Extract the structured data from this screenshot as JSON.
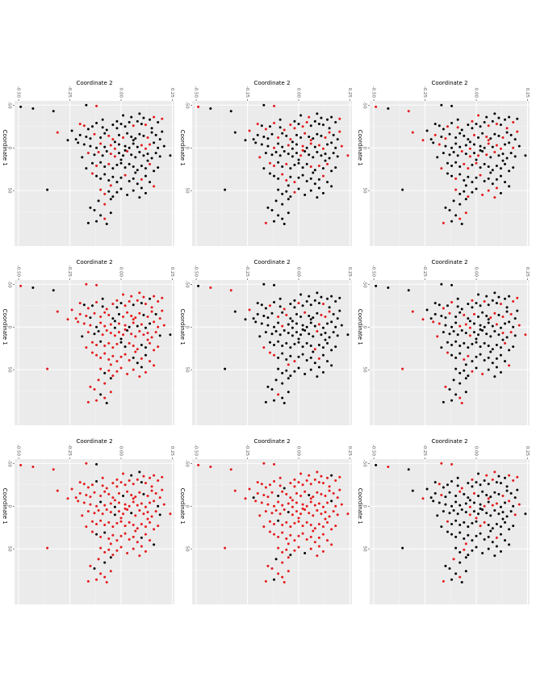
{
  "chart_data": {
    "type": "scatter",
    "layout": "3x3 grid of small-multiple scatter plots (rotated axes)",
    "shared_axes": {
      "top_title": "Coordinate 2",
      "side_title": "Coordinate 1",
      "top_ticks": [
        {
          "value": -0.5,
          "label": "-0.50"
        },
        {
          "value": -0.25,
          "label": "-0.25"
        },
        {
          "value": 0.0,
          "label": "0.00"
        },
        {
          "value": 0.25,
          "label": "0.25"
        }
      ],
      "side_ticks": [
        {
          "value": -50,
          "label": "-50"
        },
        {
          "value": 0,
          "label": "0"
        },
        {
          "value": 50,
          "label": "50"
        }
      ],
      "top_range": [
        -0.52,
        0.26
      ],
      "side_range": [
        -55,
        115
      ]
    },
    "colors": {
      "base": "#000000",
      "highlight": "#e41a1c"
    },
    "panels": [
      {
        "id": 1,
        "highlight_fraction": 0.22,
        "seed": 11
      },
      {
        "id": 2,
        "highlight_fraction": 0.26,
        "seed": 23
      },
      {
        "id": 3,
        "highlight_fraction": 0.28,
        "seed": 37
      },
      {
        "id": 4,
        "highlight_fraction": 0.74,
        "seed": 41
      },
      {
        "id": 5,
        "highlight_fraction": 0.14,
        "seed": 53
      },
      {
        "id": 6,
        "highlight_fraction": 0.2,
        "seed": 67
      },
      {
        "id": 7,
        "highlight_fraction": 0.82,
        "seed": 71
      },
      {
        "id": 8,
        "highlight_fraction": 0.9,
        "seed": 83
      },
      {
        "id": 9,
        "highlight_fraction": 0.16,
        "seed": 97
      }
    ],
    "points": [
      [
        -0.49,
        -48
      ],
      [
        -0.43,
        -46
      ],
      [
        -0.33,
        -43
      ],
      [
        -0.31,
        -18
      ],
      [
        -0.26,
        -9
      ],
      [
        -0.17,
        -50
      ],
      [
        -0.12,
        -49
      ],
      [
        -0.36,
        49
      ],
      [
        -0.2,
        -28
      ],
      [
        -0.18,
        -26
      ],
      [
        -0.16,
        -22
      ],
      [
        -0.14,
        -25
      ],
      [
        -0.12,
        -29
      ],
      [
        -0.09,
        -24
      ],
      [
        -0.07,
        -21
      ],
      [
        -0.04,
        -27
      ],
      [
        -0.02,
        -23
      ],
      [
        0.0,
        -28
      ],
      [
        0.02,
        -25
      ],
      [
        0.04,
        -30
      ],
      [
        0.06,
        -26
      ],
      [
        0.08,
        -31
      ],
      [
        0.1,
        -28
      ],
      [
        0.12,
        -27
      ],
      [
        0.14,
        -33
      ],
      [
        0.16,
        -36
      ],
      [
        0.18,
        -30
      ],
      [
        0.2,
        -34
      ],
      [
        0.05,
        -36
      ],
      [
        0.09,
        -40
      ],
      [
        -0.2,
        -15
      ],
      [
        -0.17,
        -13
      ],
      [
        -0.15,
        -11
      ],
      [
        -0.13,
        -16
      ],
      [
        -0.1,
        -12
      ],
      [
        -0.08,
        -17
      ],
      [
        -0.06,
        -14
      ],
      [
        -0.04,
        -10
      ],
      [
        -0.01,
        -15
      ],
      [
        0.01,
        -12
      ],
      [
        0.03,
        -17
      ],
      [
        0.05,
        -13
      ],
      [
        0.07,
        -11
      ],
      [
        0.09,
        -16
      ],
      [
        0.11,
        -14
      ],
      [
        0.13,
        -12
      ],
      [
        0.15,
        -18
      ],
      [
        0.17,
        -15
      ],
      [
        -0.24,
        -20
      ],
      [
        -0.22,
        -10
      ],
      [
        -0.18,
        -4
      ],
      [
        -0.15,
        -2
      ],
      [
        -0.12,
        0
      ],
      [
        -0.1,
        -5
      ],
      [
        -0.08,
        -1
      ],
      [
        -0.05,
        -3
      ],
      [
        -0.03,
        1
      ],
      [
        -0.01,
        -4
      ],
      [
        0.02,
        -2
      ],
      [
        0.04,
        0
      ],
      [
        0.06,
        -5
      ],
      [
        0.08,
        -1
      ],
      [
        0.1,
        -3
      ],
      [
        0.12,
        1
      ],
      [
        0.14,
        -4
      ],
      [
        0.16,
        -6
      ],
      [
        0.18,
        0
      ],
      [
        0.21,
        -2
      ],
      [
        0.24,
        9
      ],
      [
        -0.21,
        -6
      ],
      [
        -0.16,
        6
      ],
      [
        -0.13,
        8
      ],
      [
        -0.11,
        5
      ],
      [
        -0.09,
        9
      ],
      [
        -0.07,
        4
      ],
      [
        -0.05,
        7
      ],
      [
        -0.03,
        10
      ],
      [
        -0.01,
        6
      ],
      [
        0.01,
        9
      ],
      [
        0.03,
        4
      ],
      [
        0.05,
        8
      ],
      [
        0.07,
        11
      ],
      [
        0.09,
        5
      ],
      [
        0.11,
        9
      ],
      [
        0.13,
        7
      ],
      [
        0.15,
        12
      ],
      [
        0.17,
        6
      ],
      [
        0.19,
        10
      ],
      [
        -0.14,
        18
      ],
      [
        -0.12,
        21
      ],
      [
        -0.1,
        17
      ],
      [
        -0.08,
        22
      ],
      [
        -0.06,
        19
      ],
      [
        -0.04,
        24
      ],
      [
        -0.02,
        20
      ],
      [
        0.0,
        18
      ],
      [
        0.02,
        23
      ],
      [
        0.04,
        19
      ],
      [
        0.06,
        22
      ],
      [
        0.08,
        26
      ],
      [
        0.1,
        21
      ],
      [
        0.12,
        24
      ],
      [
        0.14,
        19
      ],
      [
        0.16,
        27
      ],
      [
        0.18,
        23
      ],
      [
        -0.17,
        24
      ],
      [
        -0.12,
        33
      ],
      [
        -0.1,
        36
      ],
      [
        -0.08,
        31
      ],
      [
        -0.06,
        38
      ],
      [
        -0.04,
        34
      ],
      [
        -0.02,
        40
      ],
      [
        0.0,
        35
      ],
      [
        0.02,
        32
      ],
      [
        0.04,
        39
      ],
      [
        0.06,
        36
      ],
      [
        0.08,
        42
      ],
      [
        0.1,
        37
      ],
      [
        0.12,
        33
      ],
      [
        0.14,
        40
      ],
      [
        0.16,
        45
      ],
      [
        -0.14,
        30
      ],
      [
        -0.1,
        49
      ],
      [
        -0.08,
        54
      ],
      [
        -0.06,
        51
      ],
      [
        -0.04,
        57
      ],
      [
        -0.02,
        52
      ],
      [
        0.0,
        48
      ],
      [
        0.03,
        55
      ],
      [
        0.06,
        50
      ],
      [
        0.09,
        58
      ],
      [
        0.12,
        53
      ],
      [
        -0.11,
        62
      ],
      [
        -0.08,
        66
      ],
      [
        -0.05,
        60
      ],
      [
        -0.13,
        73
      ],
      [
        -0.1,
        79
      ],
      [
        -0.08,
        83
      ],
      [
        -0.05,
        76
      ],
      [
        -0.15,
        70
      ],
      [
        -0.12,
        86
      ],
      [
        -0.07,
        89
      ],
      [
        -0.16,
        88
      ],
      [
        -0.02,
        -31
      ],
      [
        0.01,
        -38
      ],
      [
        0.11,
        -35
      ],
      [
        -0.03,
        -7
      ],
      [
        0.0,
        14
      ],
      [
        0.06,
        -9
      ],
      [
        0.13,
        15
      ],
      [
        -0.19,
        11
      ],
      [
        0.19,
        -10
      ],
      [
        0.07,
        29
      ],
      [
        -0.05,
        44
      ],
      [
        0.1,
        47
      ],
      [
        0.02,
        3
      ],
      [
        -0.09,
        -33
      ],
      [
        0.15,
        -23
      ],
      [
        0.2,
        -19
      ]
    ]
  }
}
